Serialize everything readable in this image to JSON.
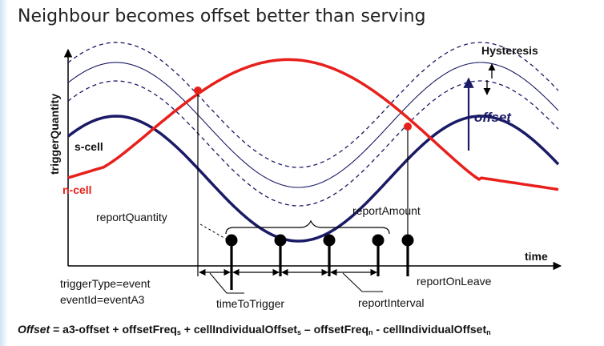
{
  "title": "Neighbour becomes offset better than serving",
  "axes": {
    "y_label": "triggerQuantity",
    "x_label": "time"
  },
  "series": {
    "serving": "s-cell",
    "neighbour": "n-cell"
  },
  "annotations": {
    "hysteresis": "Hysteresis",
    "offset": "offset",
    "report_quantity": "reportQuantity",
    "report_amount": "reportAmount",
    "report_on_leave": "reportOnLeave",
    "time_to_trigger": "timeToTrigger",
    "report_interval": "reportInterval",
    "trigger_type": "triggerType=event",
    "event_id": "eventId=eventA3"
  },
  "colors": {
    "serving": "#1a1a66",
    "neighbour": "#e8201c",
    "thresholds": "#1a1a66"
  },
  "formula": {
    "lhs": "Offset",
    "eq": " = a3-offset + offsetFreq",
    "s1": "s",
    "p2": " + cellIndividualOffset",
    "s2": "s",
    "p3": " – offsetFreq",
    "s3": "n",
    "p4": " - cellIndividualOffset",
    "s4": "n"
  }
}
